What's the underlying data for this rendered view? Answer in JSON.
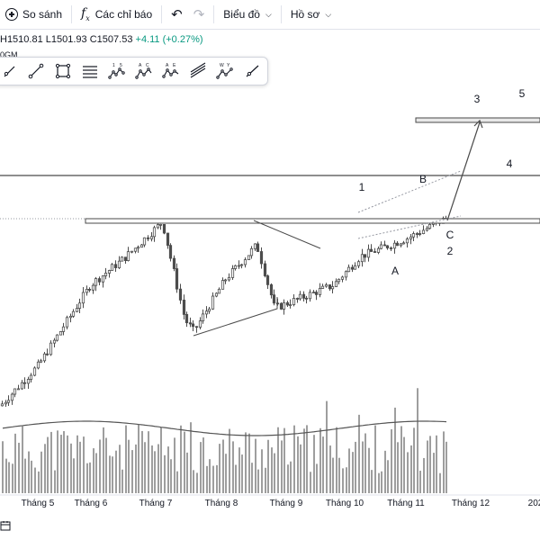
{
  "header": {
    "compare_label": "So sánh",
    "indicators_label": "Các chỉ báo",
    "chart_label": "Biểu đồ",
    "profile_label": "Hồ sơ"
  },
  "quote": {
    "high": "H1510.81",
    "low": "L1501.93",
    "close": "C1507.53",
    "change": "+4.11 (+0.27%)",
    "interval": "0GM"
  },
  "drawing_tools": [
    {
      "name": "parallel-channel-icon",
      "sub": ""
    },
    {
      "name": "trend-line-icon",
      "sub": ""
    },
    {
      "name": "rectangle-icon",
      "sub": ""
    },
    {
      "name": "fib-retracement-icon",
      "sub": ""
    },
    {
      "name": "elliott-impulse-icon",
      "sub": "1 5"
    },
    {
      "name": "elliott-correction-icon",
      "sub": "A C"
    },
    {
      "name": "elliott-triangle-icon",
      "sub": "A E"
    },
    {
      "name": "pitchfork-icon",
      "sub": ""
    },
    {
      "name": "elliott-double-combo-icon",
      "sub": "W Y"
    },
    {
      "name": "ray-icon",
      "sub": ""
    }
  ],
  "colors": {
    "candle": "#4d4d4d",
    "volume": "#9e9e9e",
    "volume_ma": "#555555",
    "drawing": "#4a4a4a",
    "grid": "#f0f3fa",
    "up_change": "#089981"
  },
  "chart_data": {
    "type": "candlestick",
    "xlabel": "",
    "ylabel": "",
    "x_ticks": [
      "Tháng 5",
      "Tháng 6",
      "Tháng 7",
      "Tháng 8",
      "Tháng 9",
      "Tháng 10",
      "Tháng 11",
      "Tháng 12",
      "202"
    ],
    "price_range_shown": [
      1150,
      1620
    ],
    "close_path_anchors": [
      {
        "t": "Tháng 4",
        "close": 1180
      },
      {
        "t": "Tháng 5",
        "close": 1250
      },
      {
        "t": "Tháng 6",
        "close": 1390
      },
      {
        "t": "Tháng 6 (cuối)",
        "close": 1440
      },
      {
        "t": "Tháng 7",
        "close": 1500
      },
      {
        "t": "Tháng 7 (giữa)",
        "close": 1330
      },
      {
        "t": "Tháng 7 (cuối)",
        "close": 1310
      },
      {
        "t": "Tháng 8",
        "close": 1400
      },
      {
        "t": "Tháng 8 (cuối)",
        "close": 1460
      },
      {
        "t": "Tháng 9",
        "close": 1350
      },
      {
        "t": "Tháng 10",
        "close": 1390
      },
      {
        "t": "Tháng 10 (cuối)",
        "close": 1440
      },
      {
        "t": "Tháng 11",
        "close": 1470
      },
      {
        "t": "Tháng 11 (cuối)",
        "close": 1507.53
      }
    ],
    "last_quote": {
      "high": 1510.81,
      "low": 1501.93,
      "close": 1507.53,
      "change": 4.11,
      "change_pct": 0.27
    },
    "volume_relative": "bars with a moving-average line",
    "annotations": {
      "wave_labels": [
        "1",
        "2",
        "3",
        "4",
        "5",
        "A",
        "B",
        "C"
      ],
      "drawings": [
        "horizontal resistance band (~1440)",
        "upper horizontal line (~1500)",
        "target box near wave 3 (~1560)",
        "rising channel A–B–C",
        "triangle (Tháng 7 - Tháng 9)",
        "projection arrow to wave 3"
      ]
    },
    "grid": false,
    "legend": "none"
  }
}
